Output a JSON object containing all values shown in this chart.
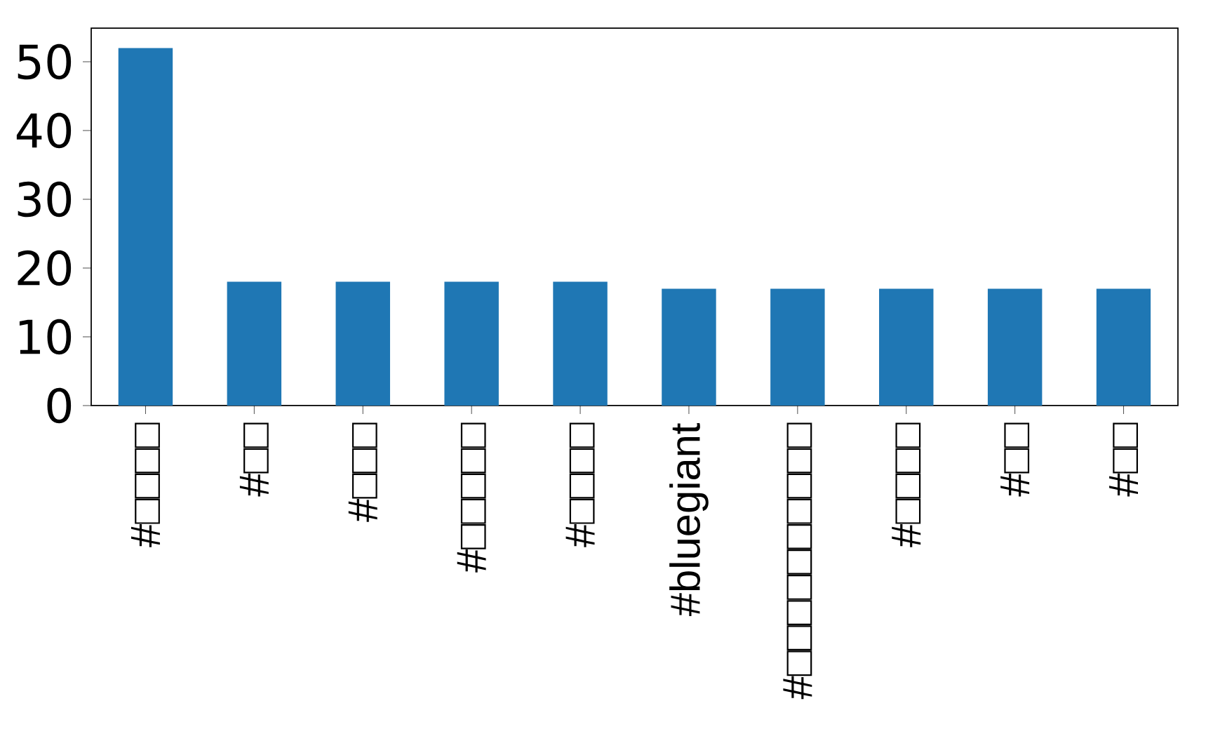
{
  "chart_data": {
    "type": "bar",
    "categories": [
      "#□□□□",
      "#□□",
      "#□□□",
      "#□□□□□",
      "#□□□□",
      "#bluegiant",
      "#□□□□□□□□□□",
      "#□□□□",
      "#□□",
      "#□□"
    ],
    "values": [
      52,
      18,
      18,
      18,
      18,
      17,
      17,
      17,
      17,
      17
    ],
    "color": "#1f77b4",
    "ylim": [
      0,
      54.9
    ],
    "yticks": [
      0,
      10,
      20,
      30,
      40,
      50
    ],
    "grid": false
  }
}
